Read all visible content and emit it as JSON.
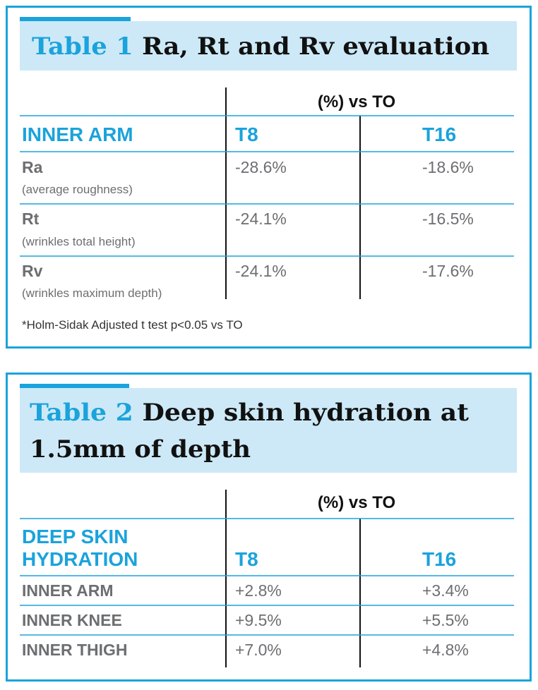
{
  "table1": {
    "title_prefix": "Table 1",
    "title": "Ra, Rt and Rv evaluation",
    "group_header": "(%) vs TO",
    "columns": [
      "INNER ARM",
      "T8",
      "T16"
    ],
    "rows": [
      {
        "label": "Ra",
        "sublabel": "(average roughness)",
        "values": [
          "-28.6%",
          "-18.6%"
        ]
      },
      {
        "label": "Rt",
        "sublabel": "(wrinkles total height)",
        "values": [
          "-24.1%",
          "-16.5%"
        ]
      },
      {
        "label": "Rv",
        "sublabel": "(wrinkles maximum depth)",
        "values": [
          "-24.1%",
          "-17.6%"
        ]
      }
    ],
    "footnote": "*Holm-Sidak Adjusted t test p<0.05 vs TO"
  },
  "table2": {
    "title_prefix": "Table 2",
    "title_lines": [
      "Deep skin hydration at",
      "1.5mm of depth"
    ],
    "group_header": "(%) vs TO",
    "columns": [
      [
        "DEEP SKIN",
        "HYDRATION"
      ],
      "T8",
      "T16"
    ],
    "rows": [
      {
        "label": "INNER ARM",
        "values": [
          "+2.8%",
          "+3.4%"
        ]
      },
      {
        "label": "INNER KNEE",
        "values": [
          "+9.5%",
          "+5.5%"
        ]
      },
      {
        "label": "INNER THIGH",
        "values": [
          "+7.0%",
          "+4.8%"
        ]
      }
    ]
  }
}
